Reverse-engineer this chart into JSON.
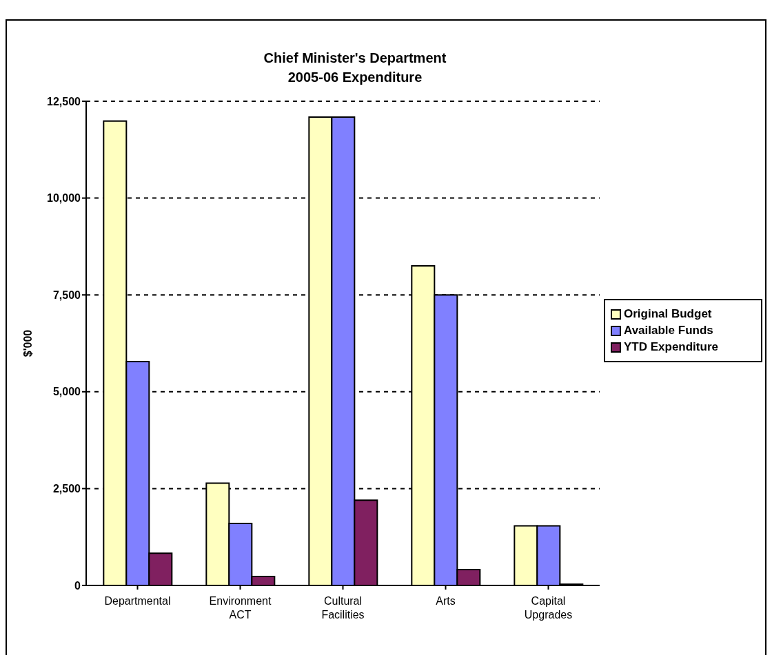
{
  "chart_data": {
    "type": "bar",
    "title": "Chief Minister's Department",
    "subtitle": "2005-06 Expenditure",
    "ylabel": "$'000",
    "categories": [
      "Departmental",
      "Environment ACT",
      "Cultural Facilities",
      "Arts",
      "Capital Upgrades"
    ],
    "series": [
      {
        "name": "Original Budget",
        "color": "#ffffc0",
        "values": [
          11990,
          2640,
          12090,
          8250,
          1540
        ]
      },
      {
        "name": "Available Funds",
        "color": "#8080ff",
        "values": [
          5780,
          1600,
          12090,
          7500,
          1540
        ]
      },
      {
        "name": "YTD Expenditure",
        "color": "#802060",
        "values": [
          830,
          230,
          2200,
          410,
          30
        ]
      }
    ],
    "ylim": [
      0,
      12500
    ],
    "yticks": [
      0,
      {
        "value": 2500,
        "label": "2,500"
      },
      {
        "value": 5000,
        "label": "5,000"
      },
      {
        "value": 7500,
        "label": "7,500"
      },
      {
        "value": 10000,
        "label": "10,000"
      },
      {
        "value": 12500,
        "label": "12,500"
      }
    ],
    "grid": "y",
    "legend": "right"
  }
}
